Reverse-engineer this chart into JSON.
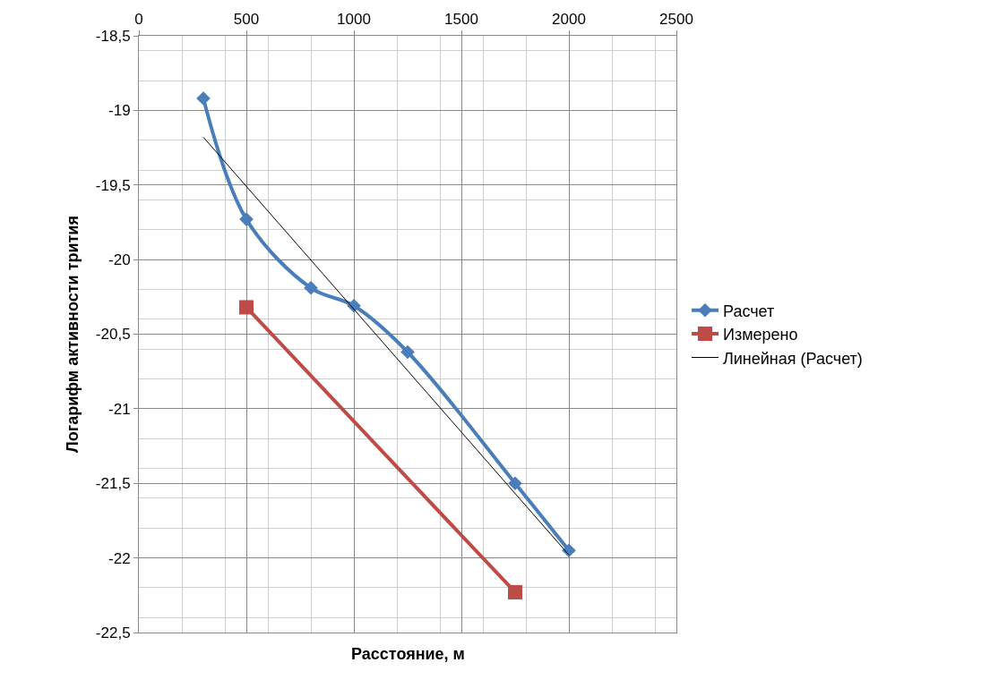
{
  "chart_data": {
    "type": "line",
    "xlabel": "Расстояние, м",
    "ylabel": "Логарифм активности трития",
    "xlim": [
      0,
      2500
    ],
    "xticks": [
      0,
      500,
      1000,
      1500,
      2000,
      2500
    ],
    "ylim": [
      -22.5,
      -18.5
    ],
    "yticks": [
      {
        "value": -18.5,
        "label": "-18,5"
      },
      -19,
      {
        "value": -19.5,
        "label": "-19,5"
      },
      -20,
      {
        "value": -20.5,
        "label": "-20,5"
      },
      -21,
      {
        "value": -21.5,
        "label": "-21,5"
      },
      -22,
      {
        "value": -22.5,
        "label": "-22,5"
      }
    ],
    "grid": true,
    "legend": "right",
    "series": [
      {
        "name": "Расчет",
        "color": "#4a7ebb",
        "marker": "diamond",
        "x": [
          300,
          500,
          800,
          1000,
          1250,
          1750,
          2000
        ],
        "values": [
          -18.92,
          -19.73,
          -20.19,
          -20.31,
          -20.62,
          -21.5,
          -21.95
        ]
      },
      {
        "name": "Измерено",
        "color": "#be4b48",
        "marker": "square",
        "x": [
          500,
          1750
        ],
        "values": [
          -20.32,
          -22.23
        ]
      },
      {
        "name": "Линейная (Расчет)",
        "color": "#000000",
        "marker": "none",
        "x": [
          300,
          2000
        ],
        "values": [
          -19.18,
          -21.98
        ]
      }
    ]
  }
}
